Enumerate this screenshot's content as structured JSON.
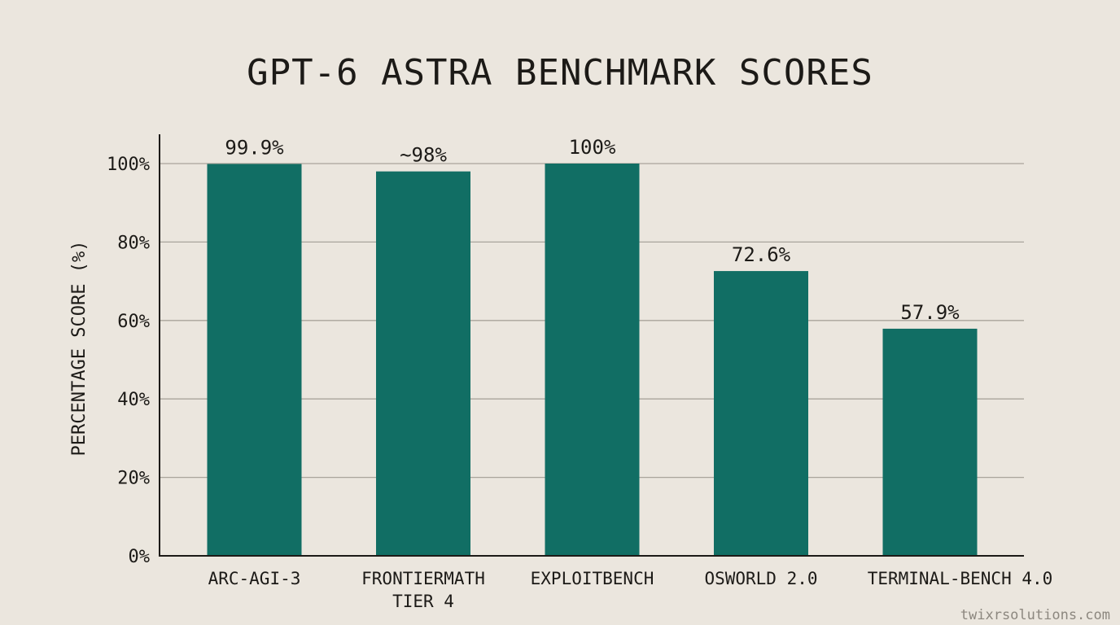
{
  "chart_data": {
    "type": "bar",
    "title": "GPT-6 ASTRA BENCHMARK SCORES",
    "ylabel": "PERCENTAGE SCORE (%)",
    "xlabel": "",
    "ylim": [
      0,
      100
    ],
    "yticks": [
      0,
      20,
      40,
      60,
      80,
      100
    ],
    "ytick_labels": [
      "0%",
      "20%",
      "40%",
      "60%",
      "80%",
      "100%"
    ],
    "grid": true,
    "bar_color": "#116e64",
    "categories": [
      [
        "ARC-AGI-3"
      ],
      [
        "FRONTIERMATH",
        "TIER 4"
      ],
      [
        "EXPLOITBENCH"
      ],
      [
        "OSWORLD 2.0"
      ],
      [
        "TERMINAL-BENCH 4.0"
      ]
    ],
    "values": [
      99.9,
      98,
      100,
      72.6,
      57.9
    ],
    "data_labels": [
      "99.9%",
      "~98%",
      "100%",
      "72.6%",
      "57.9%"
    ]
  },
  "watermark": "twixrsolutions.com"
}
